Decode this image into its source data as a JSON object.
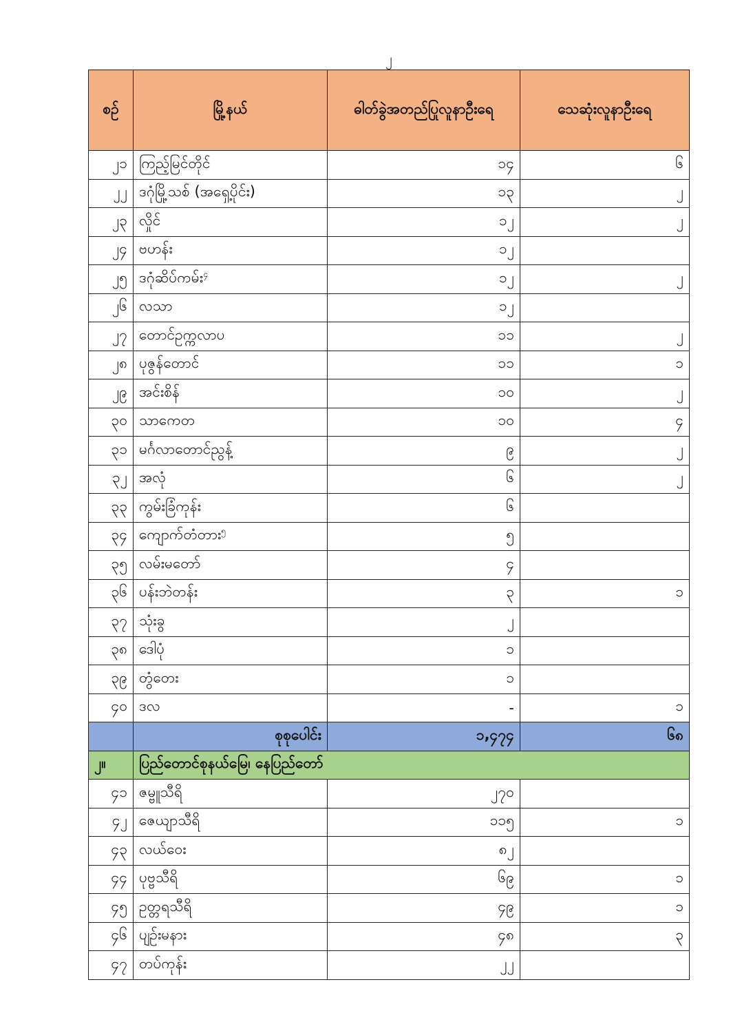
{
  "page_number": "၂",
  "header": {
    "serial": "စဉ်",
    "township": "မြို့နယ်",
    "confirmed": "ဓါတ်ခွဲအတည်ပြုလူနာဦးရေ",
    "deaths": "သေဆုံးလူနာဦးရေ"
  },
  "colors": {
    "header_bg": "#f4b183",
    "total_bg": "#8eaadb",
    "section_bg": "#a9d18e"
  },
  "rows": [
    {
      "no": "၂၁",
      "name": "ကြည့်မြင်တိုင်",
      "sup": "",
      "confirmed": "၁၄",
      "deaths": "၆"
    },
    {
      "no": "၂၂",
      "name": "ဒဂုံမြို့သစ် (အရှေ့ပိုင်း)",
      "sup": "",
      "confirmed": "၁၃",
      "deaths": "၂"
    },
    {
      "no": "၂၃",
      "name": "လှိုင်",
      "sup": "",
      "confirmed": "၁၂",
      "deaths": "၂"
    },
    {
      "no": "၂၄",
      "name": "ဗဟန်း",
      "sup": "",
      "confirmed": "၁၂",
      "deaths": ""
    },
    {
      "no": "၂၅",
      "name": "ဒဂုံဆိပ်ကမ်း",
      "sup": "၄",
      "confirmed": "၁၂",
      "deaths": "၂"
    },
    {
      "no": "၂၆",
      "name": "လသာ",
      "sup": "",
      "confirmed": "၁၂",
      "deaths": ""
    },
    {
      "no": "၂၇",
      "name": "တောင်ဥက္ကလာပ",
      "sup": "",
      "confirmed": "၁၁",
      "deaths": "၂"
    },
    {
      "no": "၂၈",
      "name": "ပုဇွန်တောင်",
      "sup": "",
      "confirmed": "၁၁",
      "deaths": "၁"
    },
    {
      "no": "၂၉",
      "name": "အင်းစိန်",
      "sup": "",
      "confirmed": "၁၀",
      "deaths": "၂"
    },
    {
      "no": "၃၀",
      "name": "သာကေတ",
      "sup": "",
      "confirmed": "၁၀",
      "deaths": "၄"
    },
    {
      "no": "၃၁",
      "name": "မင်္ဂလာတောင်ညွန့်",
      "sup": "",
      "confirmed": "၉",
      "deaths": "၂"
    },
    {
      "no": "၃၂",
      "name": "အလုံ",
      "sup": "",
      "confirmed": "၆",
      "deaths": "၂"
    },
    {
      "no": "၃၃",
      "name": "ကွမ်းခြံကုန်း",
      "sup": "",
      "confirmed": "၆",
      "deaths": ""
    },
    {
      "no": "၃၄",
      "name": "ကျောက်တံတား",
      "sup": "၅",
      "confirmed": "၅",
      "deaths": ""
    },
    {
      "no": "၃၅",
      "name": "လမ်းမတော်",
      "sup": "",
      "confirmed": "၄",
      "deaths": ""
    },
    {
      "no": "၃၆",
      "name": "ပန်းဘဲတန်း",
      "sup": "",
      "confirmed": "၃",
      "deaths": "၁"
    },
    {
      "no": "၃၇",
      "name": "သုံးခွ",
      "sup": "",
      "confirmed": "၂",
      "deaths": ""
    },
    {
      "no": "၃၈",
      "name": "ဒေါပုံ",
      "sup": "",
      "confirmed": "၁",
      "deaths": ""
    },
    {
      "no": "၃၉",
      "name": "တွံတေး",
      "sup": "",
      "confirmed": "၁",
      "deaths": ""
    },
    {
      "no": "၄၀",
      "name": "ဒလ",
      "sup": "",
      "confirmed": "-",
      "deaths": "၁"
    }
  ],
  "total": {
    "label": "စုစုပေါင်း",
    "confirmed": "၁,၄၇၄",
    "deaths": "၆၈"
  },
  "section": {
    "no": "၂။",
    "title": "ပြည်တောင်စုနယ်မြေ၊ နေပြည်တော်"
  },
  "rows2": [
    {
      "no": "၄၁",
      "name": "ဇမ္ဗူသီရိ",
      "sup": "",
      "confirmed": "၂၇၀",
      "deaths": ""
    },
    {
      "no": "၄၂",
      "name": "ဇေယျာသီရိ",
      "sup": "",
      "confirmed": "၁၁၅",
      "deaths": "၁"
    },
    {
      "no": "၄၃",
      "name": "လယ်ဝေး",
      "sup": "",
      "confirmed": "၈၂",
      "deaths": ""
    },
    {
      "no": "၄၄",
      "name": "ပုဗ္ဗသီရိ",
      "sup": "",
      "confirmed": "၆၉",
      "deaths": "၁"
    },
    {
      "no": "၄၅",
      "name": "ဥတ္တရသီရိ",
      "sup": "",
      "confirmed": "၄၉",
      "deaths": "၁"
    },
    {
      "no": "၄၆",
      "name": "ပျဉ်းမနား",
      "sup": "",
      "confirmed": "၄၈",
      "deaths": "၃"
    },
    {
      "no": "၄၇",
      "name": "တပ်ကုန်း",
      "sup": "",
      "confirmed": "၂၂",
      "deaths": ""
    }
  ]
}
